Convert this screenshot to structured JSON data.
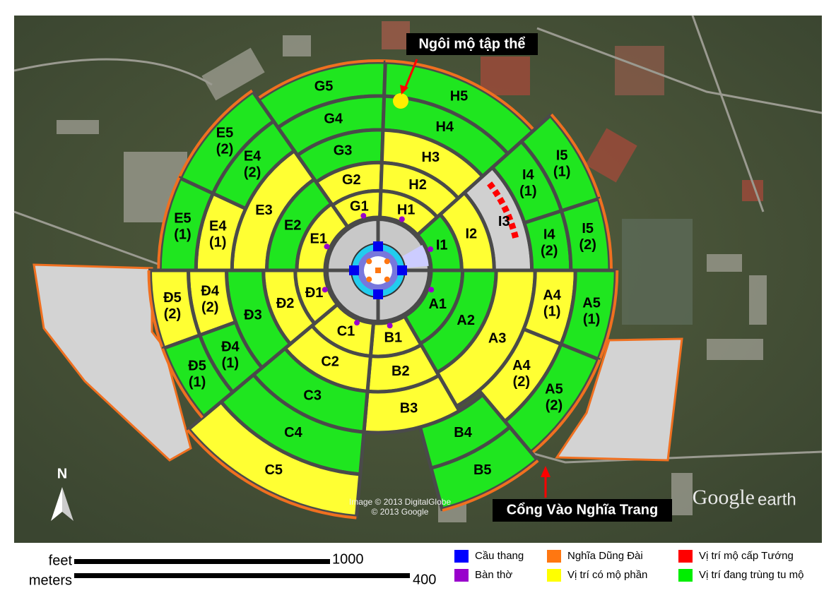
{
  "map": {
    "sections": [
      {
        "lines": [
          "G5"
        ],
        "color": "#1fe61f"
      },
      {
        "lines": [
          "G4"
        ],
        "color": "#1fe61f"
      },
      {
        "lines": [
          "G3"
        ],
        "color": "#1fe61f"
      },
      {
        "lines": [
          "G2"
        ],
        "color": "#ffff33"
      },
      {
        "lines": [
          "G1"
        ],
        "color": "#ffff33"
      },
      {
        "lines": [
          "E5",
          "(2)"
        ],
        "color": "#1fe61f"
      },
      {
        "lines": [
          "E4",
          "(2)"
        ],
        "color": "#1fe61f"
      },
      {
        "lines": [
          "E3"
        ],
        "color": "#ffff33"
      },
      {
        "lines": [
          "E2"
        ],
        "color": "#1fe61f"
      },
      {
        "lines": [
          "E1"
        ],
        "color": "#ffff33"
      },
      {
        "lines": [
          "E4",
          "(1)"
        ],
        "color": "#ffff33"
      },
      {
        "lines": [
          "E5",
          "(1)"
        ],
        "color": "#1fe61f"
      },
      {
        "lines": [
          "H5"
        ],
        "color": "#1fe61f"
      },
      {
        "lines": [
          "H4"
        ],
        "color": "#1fe61f"
      },
      {
        "lines": [
          "H3"
        ],
        "color": "#ffff33"
      },
      {
        "lines": [
          "H2"
        ],
        "color": "#ffff33"
      },
      {
        "lines": [
          "H1"
        ],
        "color": "#ffff33"
      },
      {
        "lines": [
          "I5",
          "(1)"
        ],
        "color": "#1fe61f"
      },
      {
        "lines": [
          "I4",
          "(1)"
        ],
        "color": "#1fe61f"
      },
      {
        "lines": [
          "I3"
        ],
        "color": "#d0d0d0"
      },
      {
        "lines": [
          "I2"
        ],
        "color": "#ffff33"
      },
      {
        "lines": [
          "I1"
        ],
        "color": "#1fe61f"
      },
      {
        "lines": [
          "I4",
          "(2)"
        ],
        "color": "#1fe61f"
      },
      {
        "lines": [
          "I5",
          "(2)"
        ],
        "color": "#1fe61f"
      },
      {
        "lines": [
          "A1"
        ],
        "color": "#1fe61f"
      },
      {
        "lines": [
          "A2"
        ],
        "color": "#1fe61f"
      },
      {
        "lines": [
          "A3"
        ],
        "color": "#ffff33"
      },
      {
        "lines": [
          "A4",
          "(1)"
        ],
        "color": "#ffff33"
      },
      {
        "lines": [
          "A5",
          "(1)"
        ],
        "color": "#1fe61f"
      },
      {
        "lines": [
          "A4",
          "(2)"
        ],
        "color": "#ffff33"
      },
      {
        "lines": [
          "A5",
          "(2)"
        ],
        "color": "#1fe61f"
      },
      {
        "lines": [
          "B1"
        ],
        "color": "#ffff33"
      },
      {
        "lines": [
          "B2"
        ],
        "color": "#ffff33"
      },
      {
        "lines": [
          "B3"
        ],
        "color": "#ffff33"
      },
      {
        "lines": [
          "B4"
        ],
        "color": "#1fe61f"
      },
      {
        "lines": [
          "B5"
        ],
        "color": "#1fe61f"
      },
      {
        "lines": [
          "C1"
        ],
        "color": "#ffff33"
      },
      {
        "lines": [
          "C2"
        ],
        "color": "#ffff33"
      },
      {
        "lines": [
          "C3"
        ],
        "color": "#1fe61f"
      },
      {
        "lines": [
          "C4"
        ],
        "color": "#1fe61f"
      },
      {
        "lines": [
          "C5"
        ],
        "color": "#ffff33"
      },
      {
        "lines": [
          "Đ1"
        ],
        "color": "#ffff33"
      },
      {
        "lines": [
          "Đ2"
        ],
        "color": "#ffff33"
      },
      {
        "lines": [
          "Đ3"
        ],
        "color": "#1fe61f"
      },
      {
        "lines": [
          "Đ4",
          "(2)"
        ],
        "color": "#ffff33"
      },
      {
        "lines": [
          "Đ5",
          "(2)"
        ],
        "color": "#ffff33"
      },
      {
        "lines": [
          "Đ4",
          "(1)"
        ],
        "color": "#1fe61f"
      },
      {
        "lines": [
          "Đ5",
          "(1)"
        ],
        "color": "#1fe61f"
      }
    ],
    "annotations": {
      "mass_grave": "Ngôi mộ tập thể",
      "gate": "Cổng Vào Nghĩa Trang"
    },
    "north": "N",
    "credits": [
      "Image © 2013 DigitalGlobe",
      "© 2013 Google"
    ],
    "watermark": [
      "Google",
      "earth"
    ]
  },
  "scale": {
    "feet_label": "feet",
    "feet": 1000,
    "meters_label": "meters",
    "meters": 400
  },
  "legend": [
    {
      "label": "Cầu thang",
      "color": "#0000ff"
    },
    {
      "label": "Bàn thờ",
      "color": "#9900cc"
    },
    {
      "label": "Nghĩa Dũng Đài",
      "color": "#ff7711"
    },
    {
      "label": "Vị trí có mộ phần",
      "color": "#ffff00"
    },
    {
      "label": "Vị trí mộ cấp Tướng",
      "color": "#ff0000"
    },
    {
      "label": "Vị trí đang trùng tu mộ",
      "color": "#00ee00"
    }
  ]
}
